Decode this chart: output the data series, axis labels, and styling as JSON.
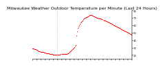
{
  "title": "Milwaukee Weather Outdoor Temperature per Minute (Last 24 Hours)",
  "title_fontsize": 4.5,
  "line_color": "#ff0000",
  "bg_color": "#ffffff",
  "grid_color": "#aaaaaa",
  "y_values": [
    29,
    29,
    28.5,
    28,
    28,
    27.5,
    27,
    26.5,
    26,
    25.5,
    25,
    25,
    24.5,
    24,
    24,
    24,
    24,
    23.5,
    23,
    23,
    22.5,
    22.5,
    22,
    22,
    22,
    21.5,
    21,
    21,
    21,
    21,
    20.5,
    20.5,
    20,
    20,
    20,
    20,
    20,
    20,
    20,
    20,
    20.5,
    21,
    21,
    21,
    21,
    21,
    21,
    21,
    21,
    21.5,
    22,
    22.5,
    23,
    24,
    25,
    26,
    27,
    28,
    29,
    30,
    31,
    32,
    33,
    46,
    52,
    56,
    58,
    60,
    62,
    64,
    65,
    66,
    67,
    68,
    69,
    70,
    70.5,
    71,
    71.5,
    72,
    72.5,
    73,
    73.5,
    74,
    74,
    73.5,
    73,
    73,
    72.5,
    72,
    71.5,
    71,
    70.5,
    70,
    70,
    69.5,
    69.5,
    69,
    69,
    68.5,
    68,
    67.5,
    67,
    67,
    66.5,
    66,
    65.5,
    65,
    64.5,
    64,
    63.5,
    63,
    62.5,
    62,
    61.5,
    61,
    60.5,
    60,
    59.5,
    59,
    58.5,
    58,
    57.5,
    57,
    56.5,
    56,
    55.5,
    55,
    54.5,
    54,
    53.5,
    53,
    52.5,
    52,
    51.5,
    51,
    50.5,
    50,
    49.5,
    49,
    48.5,
    48,
    47.5
  ],
  "ylim": [
    15,
    80
  ],
  "yticks": [
    20,
    30,
    40,
    50,
    60,
    70,
    80
  ],
  "ytick_labels": [
    "20",
    "30",
    "40",
    "50",
    "60",
    "70",
    "80"
  ],
  "marker_size": 0.8,
  "vline_x": 36,
  "num_xticks": 25
}
